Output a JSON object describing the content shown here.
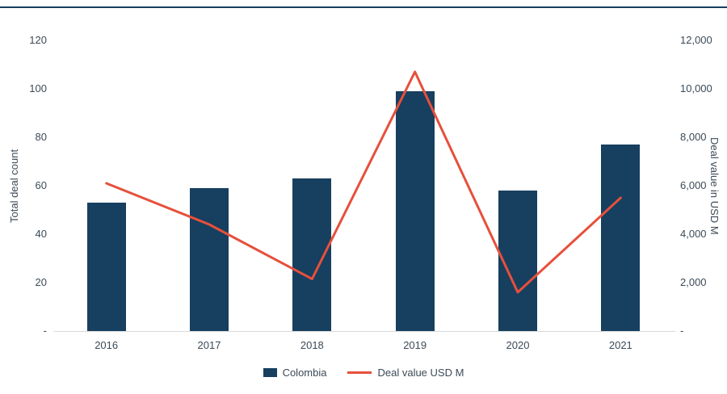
{
  "chart_data": {
    "type": "combo",
    "categories": [
      "2016",
      "2017",
      "2018",
      "2019",
      "2020",
      "2021"
    ],
    "series": [
      {
        "name": "Colombia",
        "type": "bar",
        "axis": "left",
        "values": [
          53,
          59,
          63,
          99,
          58,
          77
        ],
        "color": "#173f5f"
      },
      {
        "name": "Deal value USD M",
        "type": "line",
        "axis": "right",
        "values": [
          6100,
          4400,
          2150,
          10700,
          1600,
          5500
        ],
        "color": "#e6503c"
      }
    ],
    "left_axis": {
      "label": "Total deal count",
      "min": 0,
      "max": 120,
      "step": 20,
      "tick_labels": [
        "-",
        "20",
        "40",
        "60",
        "80",
        "100",
        "120"
      ]
    },
    "right_axis": {
      "label": "Deal value in USD M",
      "min": 0,
      "max": 12000,
      "step": 2000,
      "tick_labels": [
        "-",
        "2,000",
        "4,000",
        "6,000",
        "8,000",
        "10,000",
        "12,000"
      ]
    },
    "grid": false,
    "legend_position": "bottom",
    "colors": {
      "bar": "#173f5f",
      "line": "#e6503c",
      "axis_text": "#3c4a57",
      "baseline": "#d9d9d9",
      "top_rule": "#173f5f"
    }
  }
}
